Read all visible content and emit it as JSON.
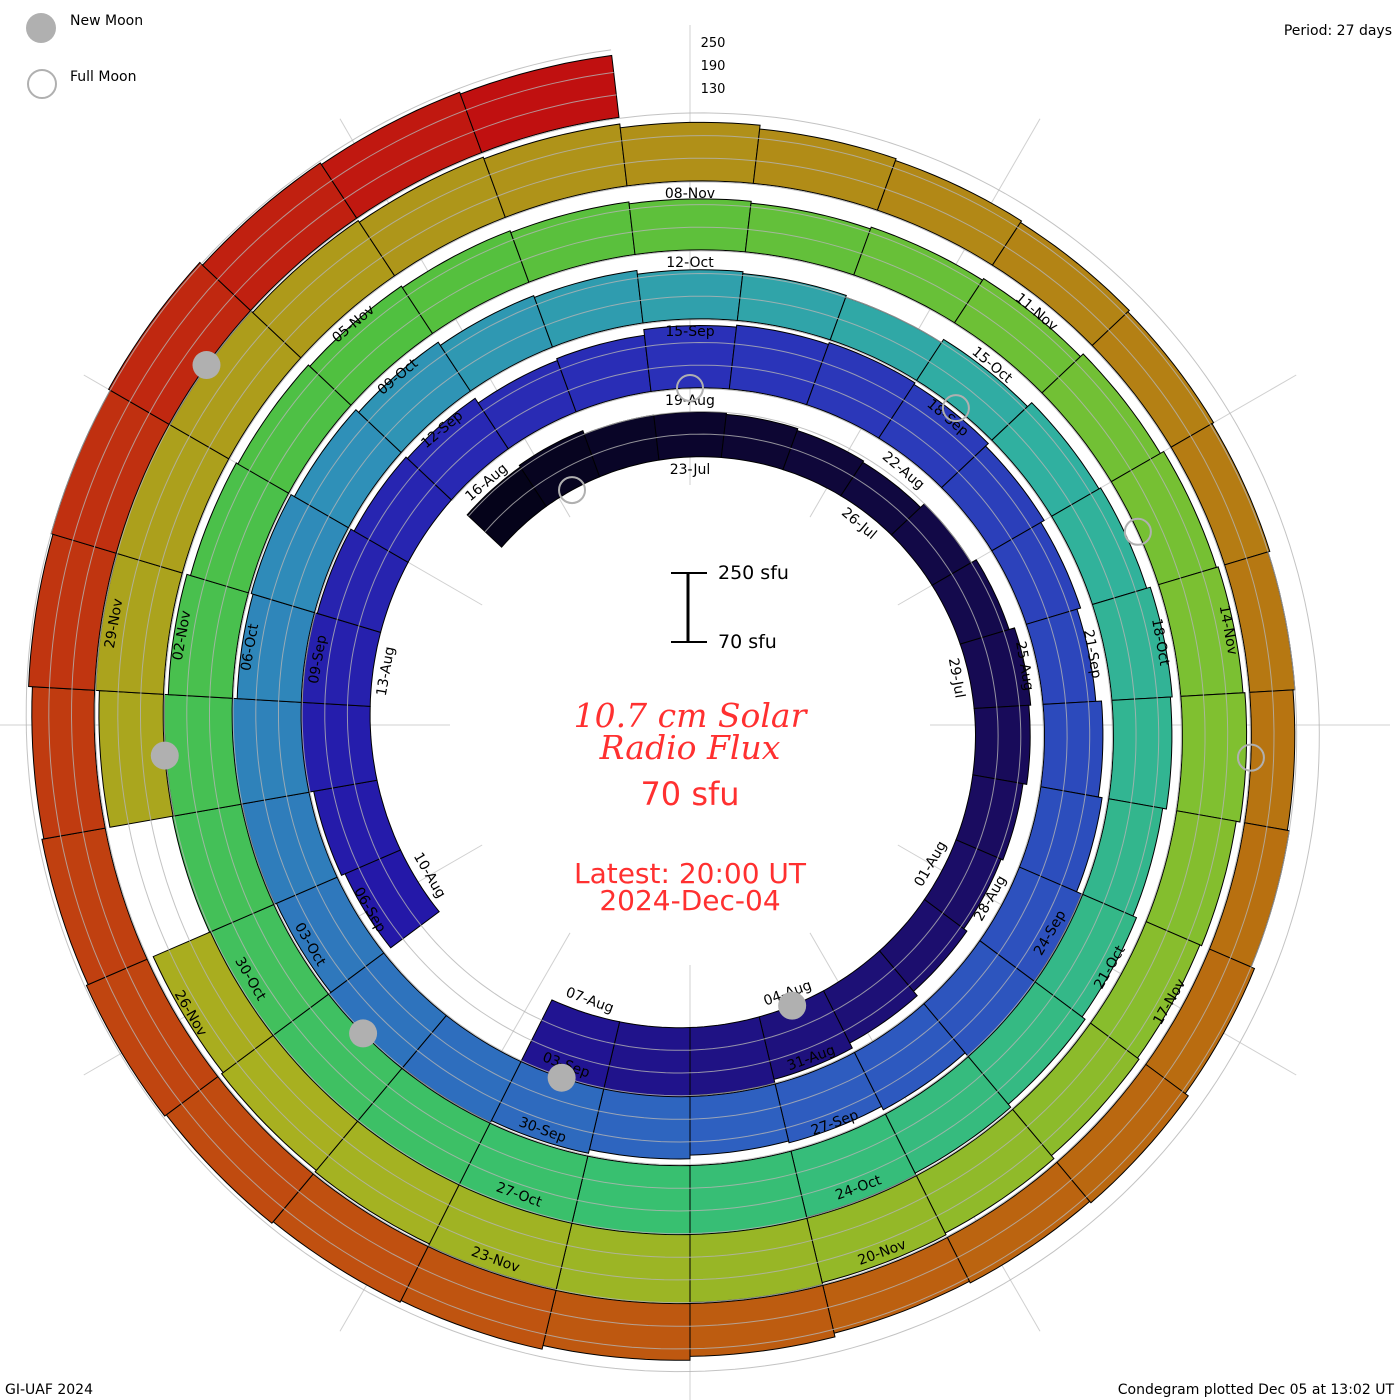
{
  "legend": {
    "new_moon": "New Moon",
    "full_moon": "Full Moon"
  },
  "period": "Period: 27 days",
  "grid_labels": [
    "250",
    "190",
    "130"
  ],
  "scale": {
    "top": "250 sfu",
    "bottom": "70 sfu"
  },
  "title": {
    "line1": "10.7 cm Solar",
    "line2": "Radio Flux",
    "baseline": "70 sfu"
  },
  "latest": {
    "time": "Latest: 20:00 UT",
    "date": "2024-Dec-04"
  },
  "footer": {
    "left": "GI-UAF 2024",
    "right": "Condegram plotted Dec 05 at 13:02 UT"
  },
  "chart_data": {
    "type": "condegram-spiral",
    "title": "10.7 cm Solar Radio Flux",
    "unit": "sfu",
    "period_days": 27,
    "baseline_sfu": 70,
    "scale_max_sfu": 250,
    "grid_levels_sfu": [
      130,
      190,
      250
    ],
    "start_date": "2024-07-20",
    "end_date": "2024-12-04",
    "reference_day": "2024-07-23",
    "daily_flux": [
      195,
      200,
      190,
      189,
      185,
      180,
      176,
      190,
      205,
      220,
      215,
      205,
      200,
      210,
      225,
      240,
      250,
      270,
      300,
      null,
      null,
      230,
      240,
      255,
      250,
      245,
      235,
      230,
      215,
      220,
      235,
      240,
      245,
      240,
      230,
      220,
      210,
      225,
      235,
      250,
      255,
      240,
      230,
      225,
      235,
      245,
      250,
      255,
      245,
      250,
      255,
      240,
      245,
      235,
      225,
      215,
      210,
      200,
      195,
      190,
      200,
      215,
      220,
      230,
      225,
      215,
      225,
      235,
      245,
      250,
      255,
      260,
      265,
      270,
      265,
      260,
      255,
      250,
      240,
      230,
      225,
      220,
      215,
      210,
      205,
      200,
      205,
      210,
      220,
      230,
      235,
      240,
      230,
      225,
      230,
      240,
      245,
      250,
      255,
      250,
      245,
      240,
      235,
      null,
      240,
      250,
      255,
      250,
      245,
      240,
      235,
      225,
      215,
      210,
      205,
      200,
      195,
      190,
      185,
      190,
      200,
      210,
      205,
      200,
      210,
      220,
      230,
      235,
      240,
      245,
      240,
      235,
      245,
      250,
      255,
      245,
      240,
      235
    ],
    "date_labels": [
      "23-Jul",
      "26-Jul",
      "29-Jul",
      "01-Aug",
      "04-Aug",
      "07-Aug",
      "10-Aug",
      "13-Aug",
      "16-Aug",
      "19-Aug",
      "22-Aug",
      "25-Aug",
      "28-Aug",
      "31-Aug",
      "03-Sep",
      "06-Sep",
      "09-Sep",
      "12-Sep",
      "15-Sep",
      "18-Sep",
      "21-Sep",
      "24-Sep",
      "27-Sep",
      "30-Sep",
      "03-Oct",
      "06-Oct",
      "09-Oct",
      "12-Oct",
      "15-Oct",
      "18-Oct",
      "21-Oct",
      "24-Oct",
      "27-Oct",
      "30-Oct",
      "02-Nov",
      "05-Nov",
      "08-Nov",
      "11-Nov",
      "14-Nov",
      "17-Nov",
      "20-Nov",
      "23-Nov",
      "26-Nov",
      "29-Nov"
    ],
    "date_label_interval_days": 3,
    "new_moons": [
      {
        "date": "04-Aug",
        "day": 12
      },
      {
        "date": "03-Sep",
        "day": 42
      },
      {
        "date": "02-Oct",
        "day": 71
      },
      {
        "date": "01-Nov",
        "day": 101
      },
      {
        "date": "01-Dec",
        "day": 131
      }
    ],
    "full_moons": [
      {
        "date": "21-Jul",
        "day": -2
      },
      {
        "date": "19-Aug",
        "day": 27
      },
      {
        "date": "18-Sep",
        "day": 57
      },
      {
        "date": "17-Oct",
        "day": 86
      },
      {
        "date": "15-Nov",
        "day": 115
      }
    ],
    "color_stops": [
      {
        "day": -3,
        "color": "#05031a"
      },
      {
        "day": 8,
        "color": "#1a0c60"
      },
      {
        "day": 18,
        "color": "#2418a8"
      },
      {
        "day": 27,
        "color": "#2a30b8"
      },
      {
        "day": 40,
        "color": "#2e60c0"
      },
      {
        "day": 50,
        "color": "#2f90b8"
      },
      {
        "day": 58,
        "color": "#30b0a0"
      },
      {
        "day": 68,
        "color": "#38c070"
      },
      {
        "day": 78,
        "color": "#50c040"
      },
      {
        "day": 88,
        "color": "#80c030"
      },
      {
        "day": 98,
        "color": "#a8b020"
      },
      {
        "day": 108,
        "color": "#b09018"
      },
      {
        "day": 116,
        "color": "#b87010"
      },
      {
        "day": 124,
        "color": "#c05010"
      },
      {
        "day": 130,
        "color": "#c03010"
      },
      {
        "day": 134,
        "color": "#c01010"
      }
    ],
    "grid_color": "#b4b4b4",
    "text_color": "#ff3030"
  }
}
